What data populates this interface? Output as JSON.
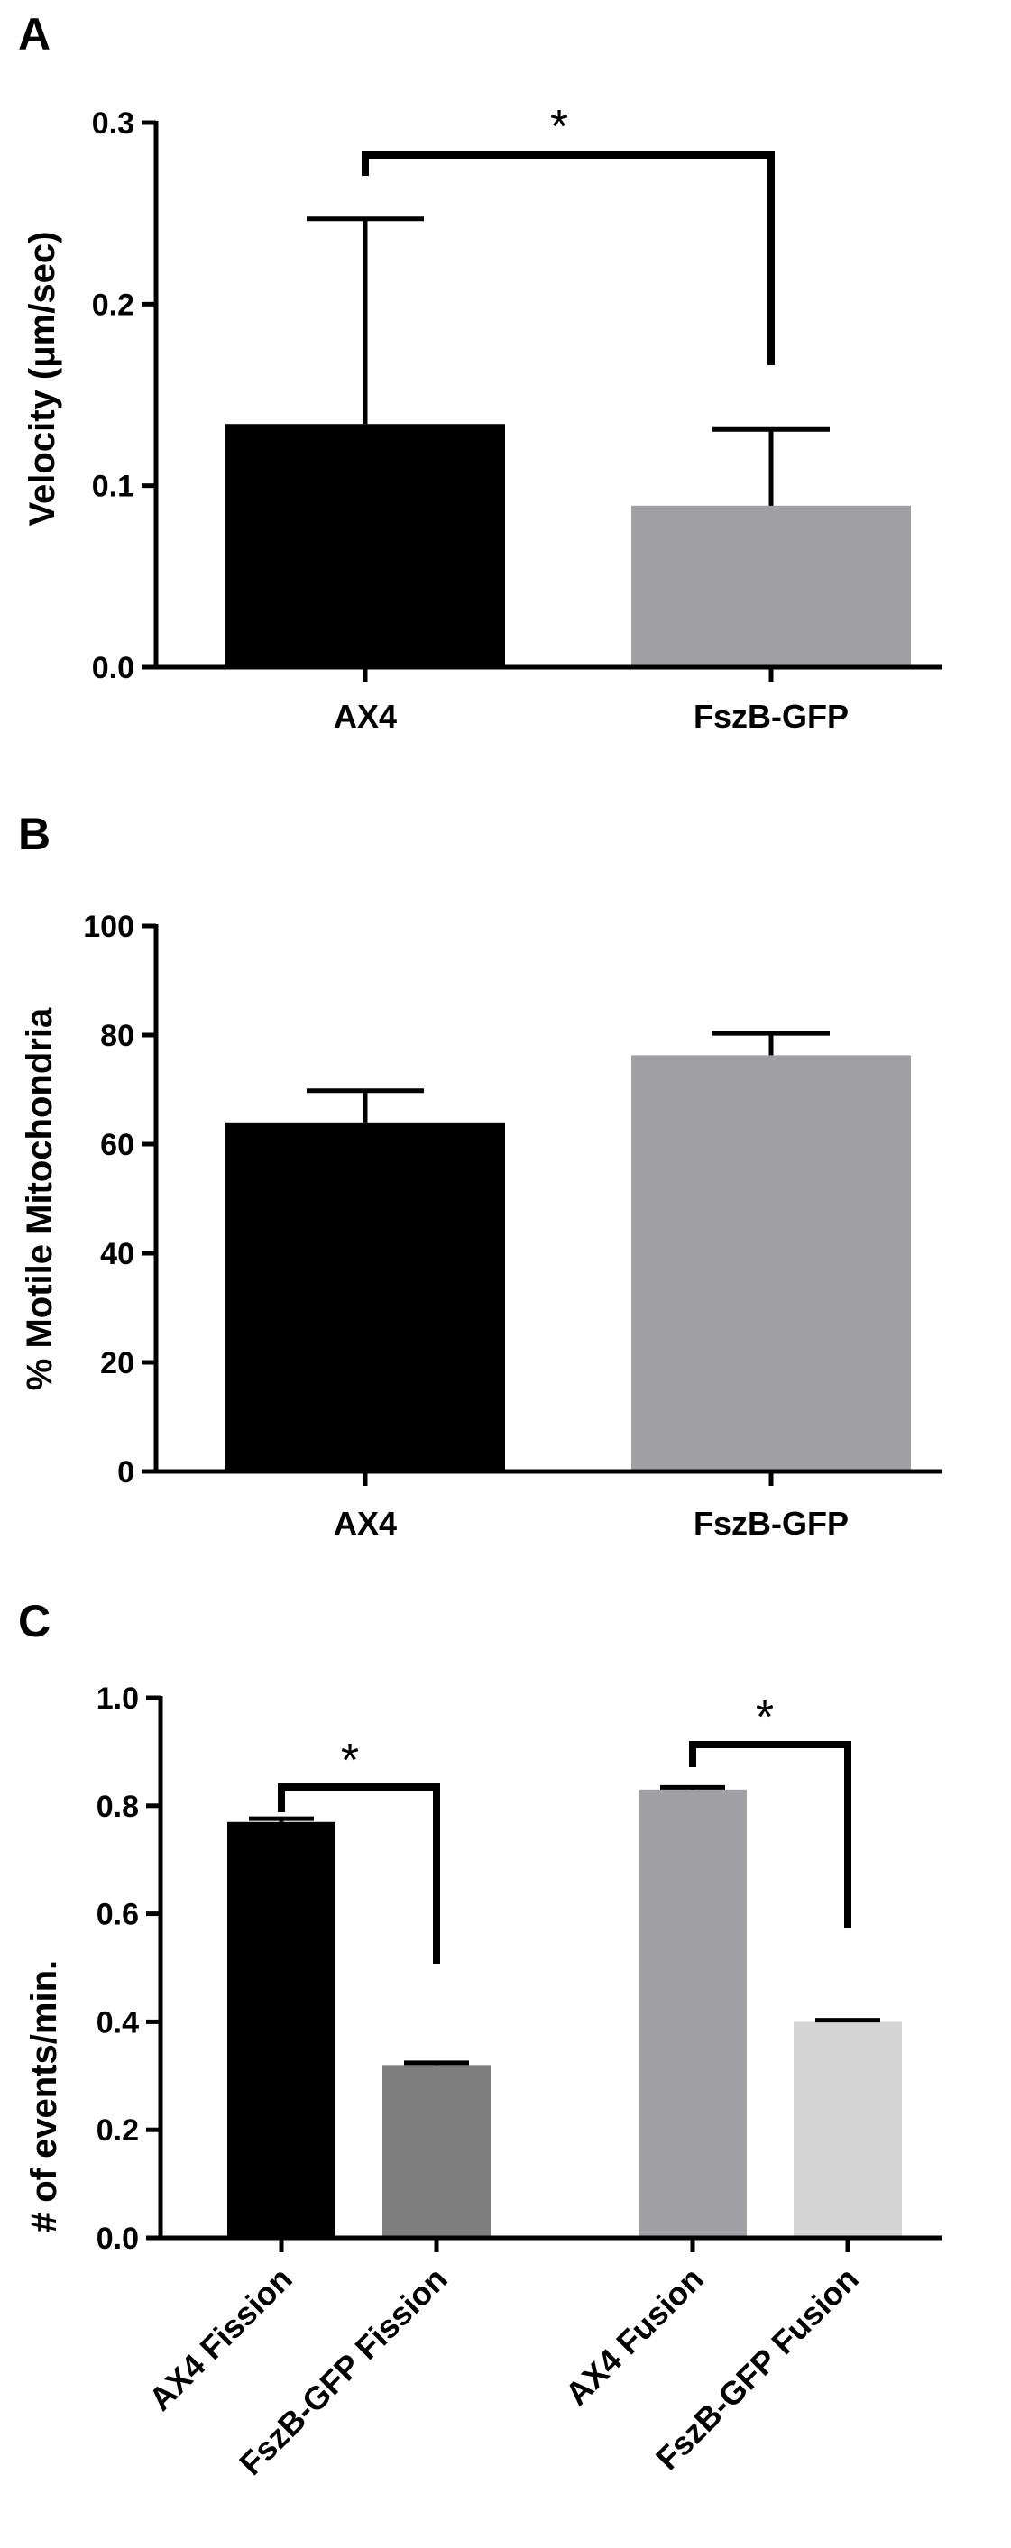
{
  "chart_data": [
    {
      "type": "bar",
      "panel": "A",
      "ylabel": "Velocity (μm/sec)",
      "ylim": [
        0,
        0.3
      ],
      "yticks": [
        0.0,
        0.1,
        0.2,
        0.3
      ],
      "ytick_labels": [
        "0.0",
        "0.1",
        "0.2",
        "0.3"
      ],
      "categories": [
        "AX4",
        "FszB-GFP"
      ],
      "values": [
        0.134,
        0.089
      ],
      "error": [
        0.113,
        0.042
      ],
      "colors": [
        "#000000",
        "#a0a0a4"
      ],
      "significance": [
        {
          "pair": [
            0,
            1
          ],
          "label": "*"
        }
      ]
    },
    {
      "type": "bar",
      "panel": "B",
      "ylabel": "% Motile Mitochondria",
      "ylim": [
        0,
        100
      ],
      "yticks": [
        0,
        20,
        40,
        60,
        80,
        100
      ],
      "ytick_labels": [
        "0",
        "20",
        "40",
        "60",
        "80",
        "100"
      ],
      "categories": [
        "AX4",
        "FszB-GFP"
      ],
      "values": [
        64,
        76.3
      ],
      "error": [
        5.8,
        4.0
      ],
      "colors": [
        "#000000",
        "#a0a0a4"
      ],
      "significance": []
    },
    {
      "type": "bar",
      "panel": "C",
      "ylabel": "# of events/min.",
      "ylim": [
        0,
        1.0
      ],
      "yticks": [
        0.0,
        0.2,
        0.4,
        0.6,
        0.8,
        1.0
      ],
      "ytick_labels": [
        "0.0",
        "0.2",
        "0.4",
        "0.6",
        "0.8",
        "1.0"
      ],
      "categories": [
        "AX4 Fission",
        "FszB-GFP Fission",
        "AX4 Fusion",
        "FszB-GFP Fusion"
      ],
      "values": [
        0.77,
        0.32,
        0.83,
        0.4
      ],
      "error": [
        0.006,
        0.004,
        0.004,
        0.003
      ],
      "colors": [
        "#000000",
        "#7f7f7f",
        "#a0a0a4",
        "#d4d4d4"
      ],
      "significance": [
        {
          "pair": [
            0,
            1
          ],
          "label": "*"
        },
        {
          "pair": [
            2,
            3
          ],
          "label": "*"
        }
      ]
    }
  ]
}
